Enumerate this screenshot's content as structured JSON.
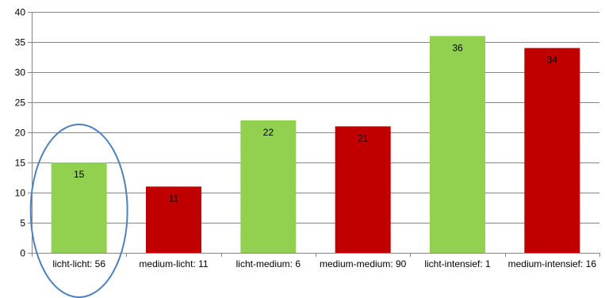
{
  "chart_data": {
    "type": "bar",
    "categories": [
      "licht-licht: 56",
      "medium-licht: 11",
      "licht-medium: 6",
      "medium-medium: 90",
      "licht-intensief: 1",
      "medium-intensief: 16"
    ],
    "values": [
      15,
      11,
      22,
      21,
      36,
      34
    ],
    "bar_colors": [
      "#92d050",
      "#c00000",
      "#92d050",
      "#c00000",
      "#92d050",
      "#c00000"
    ],
    "data_labels": true,
    "ylim": [
      0,
      40
    ],
    "yticks": [
      0,
      5,
      10,
      15,
      20,
      25,
      30,
      35,
      40
    ],
    "grid": true,
    "legend": "none",
    "highlight_ellipse_color": "#4f81bd",
    "highlighted_category": "licht-licht: 56",
    "title": "",
    "xlabel": "",
    "ylabel": ""
  }
}
